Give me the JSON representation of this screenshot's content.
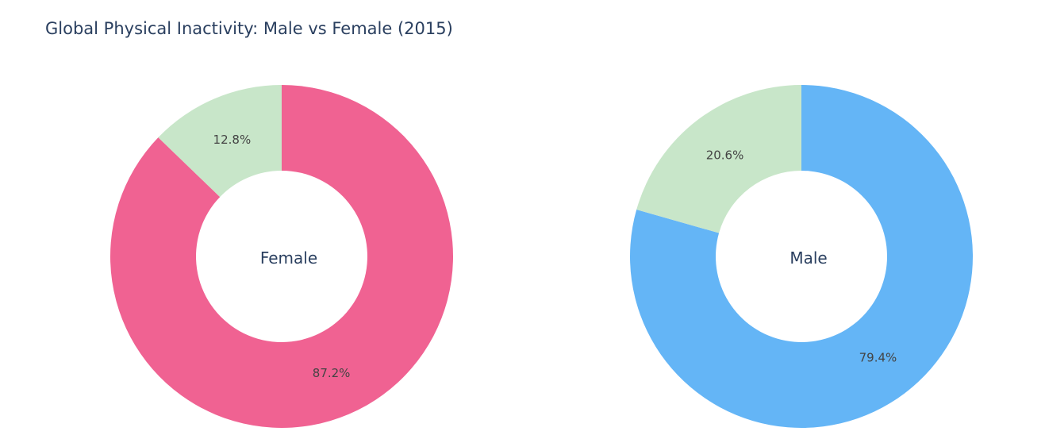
{
  "title": "Global Physical Inactivity: Male vs Female (2015)",
  "colors": {
    "inactive_female": "#f06292",
    "inactive_male": "#64b5f6",
    "active": "#c8e6c9"
  },
  "chart_data": [
    {
      "type": "pie",
      "hole": true,
      "center_label": "Female",
      "slices": [
        {
          "value": 87.2,
          "label": "87.2%",
          "color": "#f06292"
        },
        {
          "value": 12.8,
          "label": "12.8%",
          "color": "#c8e6c9"
        }
      ]
    },
    {
      "type": "pie",
      "hole": true,
      "center_label": "Male",
      "slices": [
        {
          "value": 79.4,
          "label": "79.4%",
          "color": "#64b5f6"
        },
        {
          "value": 20.6,
          "label": "20.6%",
          "color": "#c8e6c9"
        }
      ]
    }
  ]
}
